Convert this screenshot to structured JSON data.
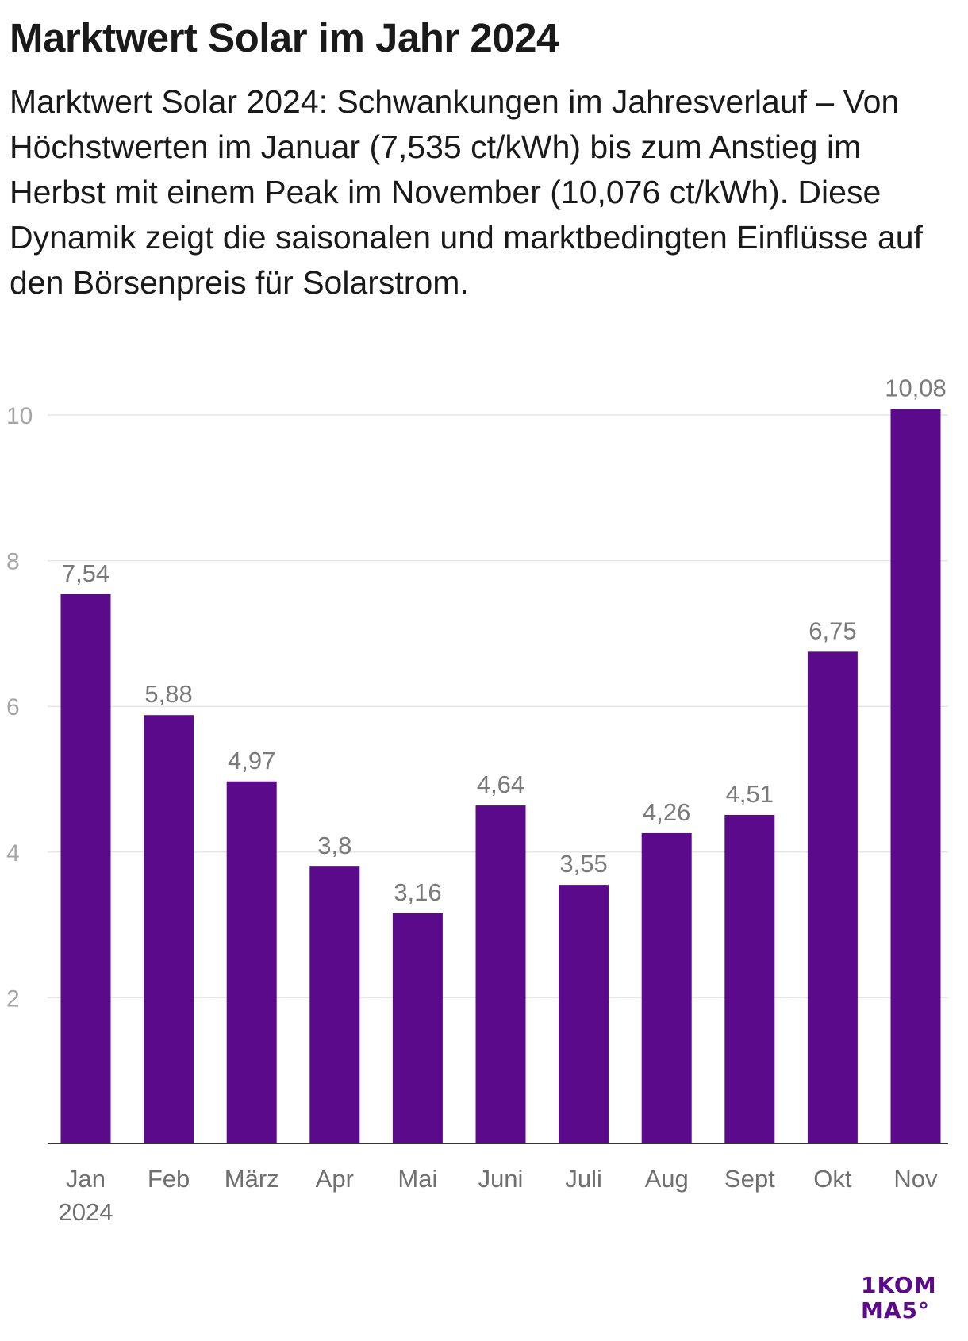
{
  "header": {
    "title": "Marktwert Solar im Jahr 2024",
    "subtitle": "Marktwert Solar 2024: Schwankungen im Jahresverlauf – Von Höchstwerten im Januar (7,535 ct/kWh) bis zum Anstieg im Herbst mit einem Peak im November (10,076 ct/kWh). Diese Dynamik zeigt die saisonalen und marktbedingten Einflüsse auf den Börsenpreis für Solarstrom."
  },
  "chart_data": {
    "type": "bar",
    "categories": [
      "Jan",
      "Feb",
      "März",
      "Apr",
      "Mai",
      "Juni",
      "Juli",
      "Aug",
      "Sept",
      "Okt",
      "Nov"
    ],
    "category_sublabels": [
      "2024",
      "",
      "",
      "",
      "",
      "",
      "",
      "",
      "",
      "",
      ""
    ],
    "values": [
      7.54,
      5.88,
      4.97,
      3.8,
      3.16,
      4.64,
      3.55,
      4.26,
      4.51,
      6.75,
      10.08
    ],
    "value_labels": [
      "7,54",
      "5,88",
      "4,97",
      "3,8",
      "3,16",
      "4,64",
      "3,55",
      "4,26",
      "4,51",
      "6,75",
      "10,08"
    ],
    "y_ticks": [
      2,
      4,
      6,
      8,
      10
    ],
    "y_tick_labels": [
      "2",
      "4",
      "6",
      "8",
      "10"
    ],
    "ylim": [
      0,
      10
    ],
    "xlabel": "",
    "ylabel": "",
    "grid": true,
    "legend": "none",
    "bar_color": "#5b0a8b",
    "grid_color": "#e6e6e6",
    "axis_color": "#333333"
  },
  "logo": {
    "line1": "1KOM",
    "line2": "MA5°",
    "color": "#5b0a8b"
  }
}
